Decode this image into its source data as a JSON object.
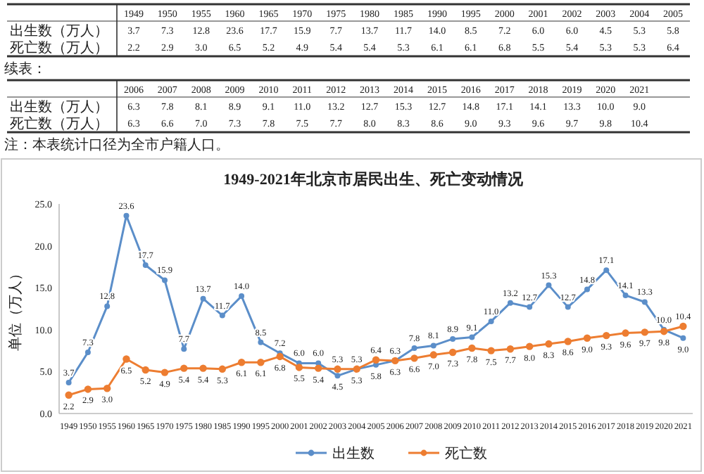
{
  "chart_data": {
    "type": "line",
    "title": "1949-2021年北京市居民出生、死亡变动情况",
    "ylabel": "单位（万人）",
    "categories": [
      "1949",
      "1950",
      "1955",
      "1960",
      "1965",
      "1970",
      "1975",
      "1980",
      "1985",
      "1990",
      "1995",
      "2000",
      "2001",
      "2002",
      "2003",
      "2004",
      "2005",
      "2006",
      "2007",
      "2008",
      "2009",
      "2010",
      "2011",
      "2012",
      "2013",
      "2014",
      "2015",
      "2016",
      "2017",
      "2018",
      "2019",
      "2020",
      "2021"
    ],
    "series": [
      {
        "name": "出生数",
        "color": "#5b8ec9",
        "values": [
          3.7,
          7.3,
          12.8,
          23.6,
          17.7,
          15.9,
          7.7,
          13.7,
          11.7,
          14.0,
          8.5,
          7.2,
          6.0,
          6.0,
          4.5,
          5.3,
          5.8,
          6.3,
          7.8,
          8.1,
          8.9,
          9.1,
          11.0,
          13.2,
          12.7,
          15.3,
          12.7,
          14.8,
          17.1,
          14.1,
          13.3,
          10.0,
          9.0
        ],
        "value_labels": [
          "3.7",
          "7.3",
          "12.8",
          "23.6",
          "17.7",
          "15.9",
          "7.7",
          "13.7",
          "11.7",
          "14.0",
          "8.5",
          "7.2",
          "6.0",
          "6.0",
          "4.5",
          "5.3",
          "5.8",
          "6.3",
          "7.8",
          "8.1",
          "8.9",
          "9.1",
          "11.0",
          "13.2",
          "12.7",
          "15.3",
          "12.7",
          "14.8",
          "17.1",
          "14.1",
          "13.3",
          "10.0",
          "9.0"
        ]
      },
      {
        "name": "死亡数",
        "color": "#ed7d31",
        "values": [
          2.2,
          2.9,
          3.0,
          6.5,
          5.2,
          4.9,
          5.4,
          5.4,
          5.3,
          6.1,
          6.1,
          6.8,
          5.5,
          5.4,
          5.3,
          5.3,
          6.4,
          6.3,
          6.6,
          7.0,
          7.3,
          7.8,
          7.5,
          7.7,
          8.0,
          8.3,
          8.6,
          9.0,
          9.3,
          9.6,
          9.7,
          9.8,
          10.4
        ],
        "value_labels": [
          "2.2",
          "2.9",
          "3.0",
          "6.5",
          "5.2",
          "4.9",
          "5.4",
          "5.4",
          "5.3",
          "6.1",
          "6.1",
          "6.8",
          "5.5",
          "5.4",
          "5.3",
          "5.3",
          "6.4",
          "6.3",
          "6.6",
          "7.0",
          "7.3",
          "7.8",
          "7.5",
          "7.7",
          "8.0",
          "8.3",
          "8.6",
          "9.0",
          "9.3",
          "9.6",
          "9.7",
          "9.8",
          "10.4"
        ]
      }
    ],
    "ylim": [
      0,
      25
    ],
    "yticks": [
      {
        "value": 0,
        "label": "0.0"
      },
      {
        "value": 5,
        "label": "5.0"
      },
      {
        "value": 10,
        "label": "10.0"
      },
      {
        "value": 15,
        "label": "15.0"
      },
      {
        "value": 20,
        "label": "20.0"
      },
      {
        "value": 25,
        "label": "25.0"
      }
    ],
    "marker": "circle",
    "legend": "bottom",
    "grid": false,
    "annotations": [
      "出生数（万人）",
      "死亡数（万人）",
      "续表：",
      "注：本表统计口径为全市户籍人口。"
    ]
  }
}
